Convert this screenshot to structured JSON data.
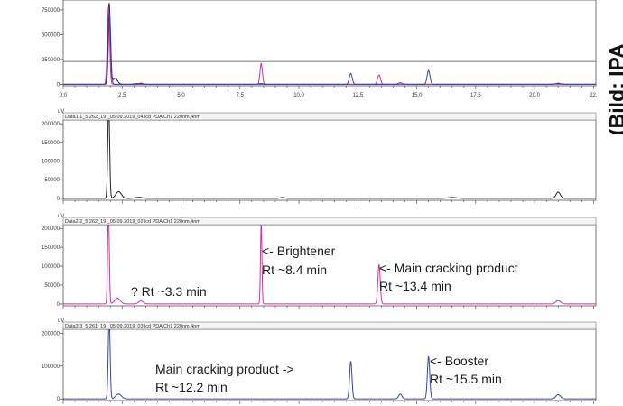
{
  "watermark": "(Bild: IPA",
  "chart_data": [
    {
      "type": "line",
      "title": "",
      "yticks": [
        "750000",
        "500000",
        "250000",
        "0"
      ],
      "yvals": [
        750000,
        500000,
        250000,
        0
      ],
      "ylim": [
        -15000,
        850000
      ],
      "xlim": [
        0,
        22.6
      ],
      "xticks": [
        0.0,
        2.5,
        5.0,
        7.5,
        10.0,
        12.5,
        15.0,
        17.5,
        20.0,
        22.5
      ],
      "xtick_labels": [
        "0,0",
        "2,5",
        "5,0",
        "7,5",
        "10,0",
        "12,5",
        "15,0",
        "17,5",
        "20,0",
        "22,"
      ],
      "hline": 230000,
      "series": [
        {
          "color": "#222222",
          "baseline": 0,
          "peaks": [
            [
              1.95,
              820000,
              0.05
            ],
            [
              2.2,
              60000,
              0.1
            ],
            [
              3.2,
              8000,
              0.15
            ],
            [
              8.4,
              6000,
              0.1
            ],
            [
              21.0,
              5000,
              0.15
            ]
          ]
        },
        {
          "color": "#cc3399",
          "baseline": 0,
          "peaks": [
            [
              1.92,
              780000,
              0.05
            ],
            [
              8.4,
              210000,
              0.05
            ],
            [
              13.4,
              95000,
              0.06
            ],
            [
              3.3,
              12000,
              0.1
            ]
          ]
        },
        {
          "color": "#3344aa",
          "baseline": 0,
          "peaks": [
            [
              1.97,
              700000,
              0.05
            ],
            [
              12.2,
              110000,
              0.06
            ],
            [
              15.5,
              140000,
              0.06
            ],
            [
              14.3,
              15000,
              0.08
            ],
            [
              21.0,
              10000,
              0.1
            ]
          ]
        }
      ]
    },
    {
      "type": "line",
      "unit": "uV",
      "header": "Data1:1_5 262_19 _05.09.2019_04.lcd PDA Ch1 220nm,4nm",
      "yticks": [
        "200000",
        "150000",
        "100000",
        "50000",
        "0"
      ],
      "yvals": [
        200000,
        150000,
        100000,
        50000,
        0
      ],
      "ylim": [
        -5000,
        210000
      ],
      "xlim": [
        0,
        22.6
      ],
      "series": [
        {
          "color": "#222222",
          "baseline": 0,
          "peaks": [
            [
              1.93,
              250000,
              0.04
            ],
            [
              2.35,
              18000,
              0.12
            ],
            [
              3.2,
              3000,
              0.15
            ],
            [
              9.3,
              2500,
              0.1
            ],
            [
              16.5,
              2500,
              0.2
            ],
            [
              21.0,
              17000,
              0.09
            ]
          ]
        }
      ]
    },
    {
      "type": "line",
      "unit": "uV",
      "header": "Data2:2_5 262_19 _05.09.2019_02.lcd PDA Ch1 220nm,4nm",
      "yticks": [
        "200000",
        "150000",
        "100000",
        "50000",
        "0"
      ],
      "yvals": [
        200000,
        150000,
        100000,
        50000,
        0
      ],
      "ylim": [
        -5000,
        210000
      ],
      "xlim": [
        0,
        22.6
      ],
      "series": [
        {
          "color": "#cc3399",
          "baseline": 0,
          "peaks": [
            [
              1.92,
              250000,
              0.035
            ],
            [
              2.3,
              15000,
              0.12
            ],
            [
              3.3,
              8000,
              0.1
            ],
            [
              8.4,
              215000,
              0.03
            ],
            [
              13.4,
              105000,
              0.05
            ],
            [
              21.0,
              9000,
              0.1
            ]
          ]
        }
      ]
    },
    {
      "type": "line",
      "unit": "uV",
      "header": "Data3:3_5 261_19 _05.09.2019_03.lcd PDA Ch1 220nm,4nm",
      "yticks": [
        "200000",
        "100000",
        "0"
      ],
      "yvals": [
        200000,
        100000,
        0
      ],
      "ylim": [
        -5000,
        212000
      ],
      "xlim": [
        0,
        22.6
      ],
      "series": [
        {
          "color": "#3344aa",
          "baseline": 0,
          "peaks": [
            [
              1.95,
              250000,
              0.04
            ],
            [
              2.35,
              15000,
              0.12
            ],
            [
              12.2,
              115000,
              0.05
            ],
            [
              14.3,
              15000,
              0.07
            ],
            [
              15.5,
              130000,
              0.05
            ],
            [
              21.0,
              13000,
              0.1
            ]
          ]
        }
      ]
    }
  ],
  "annotations": {
    "q_rt": "? Rt ~3.3 min",
    "brightener_1": "<- Brightener",
    "brightener_2": "Rt ~8.4 min",
    "main_crack_1": "<- Main cracking product",
    "main_crack_2": "Rt ~13.4 min",
    "main_crack_b1": "Main cracking product ->",
    "main_crack_b2": "Rt ~12.2 min",
    "booster_1": "<- Booster",
    "booster_2": "Rt ~15.5 min"
  }
}
